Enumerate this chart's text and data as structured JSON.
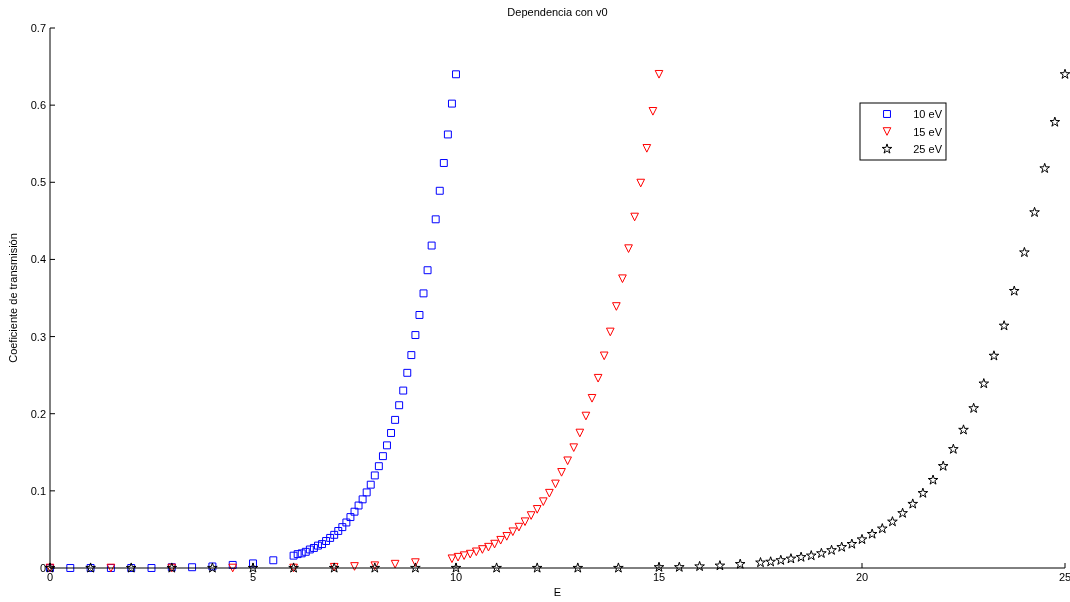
{
  "chart_data": {
    "type": "scatter",
    "title": "Dependencia con v0",
    "xlabel": "E",
    "ylabel": "Coeficiente de transmisión",
    "xlim": [
      0,
      25
    ],
    "xticks": [
      0,
      5,
      10,
      15,
      20,
      25
    ],
    "ylim": [
      0,
      0.7
    ],
    "yticks": [
      0,
      0.1,
      0.2,
      0.3,
      0.4,
      0.5,
      0.6,
      0.7
    ],
    "grid": false,
    "legend": "top right",
    "series": [
      {
        "name": "10 eV",
        "color": "#0000ff",
        "marker": "square",
        "x": [
          0,
          0.5,
          1,
          1.5,
          2,
          2.5,
          3,
          3.5,
          4,
          4.5,
          5,
          5.5,
          6,
          6.1,
          6.2,
          6.3,
          6.4,
          6.5,
          6.6,
          6.7,
          6.8,
          6.9,
          7,
          7.1,
          7.2,
          7.3,
          7.4,
          7.5,
          7.6,
          7.7,
          7.8,
          7.9,
          8,
          8.1,
          8.2,
          8.3,
          8.4,
          8.5,
          8.6,
          8.7,
          8.8,
          8.9,
          9,
          9.1,
          9.2,
          9.3,
          9.4,
          9.5,
          9.6,
          9.7,
          9.8,
          9.9,
          10
        ],
        "values": [
          0,
          0,
          0,
          0,
          0,
          0,
          0.001,
          0.001,
          0.002,
          0.004,
          0.006,
          0.01,
          0.016,
          0.018,
          0.019,
          0.021,
          0.024,
          0.026,
          0.029,
          0.031,
          0.035,
          0.039,
          0.043,
          0.048,
          0.053,
          0.059,
          0.066,
          0.073,
          0.081,
          0.089,
          0.098,
          0.108,
          0.12,
          0.132,
          0.145,
          0.159,
          0.175,
          0.192,
          0.211,
          0.23,
          0.253,
          0.276,
          0.302,
          0.328,
          0.356,
          0.386,
          0.418,
          0.452,
          0.489,
          0.525,
          0.562,
          0.602,
          0.64
        ]
      },
      {
        "name": "15 eV",
        "color": "#ff0000",
        "marker": "triangle",
        "x": [
          0,
          1.5,
          3,
          4.5,
          6,
          7,
          7.5,
          8,
          8.5,
          9,
          9.9,
          10.05,
          10.2,
          10.35,
          10.5,
          10.65,
          10.8,
          10.95,
          11.1,
          11.25,
          11.4,
          11.55,
          11.7,
          11.85,
          12,
          12.15,
          12.3,
          12.45,
          12.6,
          12.75,
          12.9,
          13.05,
          13.2,
          13.35,
          13.5,
          13.65,
          13.8,
          13.95,
          14.1,
          14.25,
          14.4,
          14.55,
          14.7,
          14.85,
          15
        ],
        "values": [
          0,
          0,
          0,
          0,
          0,
          0.001,
          0.002,
          0.003,
          0.005,
          0.007,
          0.012,
          0.014,
          0.016,
          0.018,
          0.021,
          0.024,
          0.027,
          0.031,
          0.036,
          0.041,
          0.047,
          0.053,
          0.06,
          0.068,
          0.076,
          0.086,
          0.097,
          0.109,
          0.124,
          0.139,
          0.156,
          0.175,
          0.197,
          0.22,
          0.246,
          0.275,
          0.306,
          0.339,
          0.375,
          0.414,
          0.455,
          0.499,
          0.544,
          0.592,
          0.64
        ]
      },
      {
        "name": "25 eV",
        "color": "#000000",
        "marker": "star",
        "x": [
          0,
          1,
          2,
          3,
          4,
          5,
          6,
          7,
          8,
          9,
          10,
          11,
          12,
          13,
          14,
          15,
          15.5,
          16,
          16.5,
          17,
          17.5,
          17.75,
          18,
          18.25,
          18.5,
          18.75,
          19,
          19.25,
          19.5,
          19.75,
          20,
          20.25,
          20.5,
          20.75,
          21,
          21.25,
          21.5,
          21.75,
          22,
          22.25,
          22.5,
          22.75,
          23,
          23.25,
          23.5,
          23.75,
          24,
          24.25,
          24.5,
          24.75,
          25
        ],
        "values": [
          0,
          0,
          0,
          0,
          0,
          0,
          0,
          0,
          0,
          0,
          0,
          0,
          0,
          0,
          0,
          0.001,
          0.001,
          0.002,
          0.003,
          0.005,
          0.007,
          0.008,
          0.01,
          0.012,
          0.014,
          0.016,
          0.019,
          0.023,
          0.027,
          0.031,
          0.037,
          0.044,
          0.051,
          0.06,
          0.071,
          0.083,
          0.097,
          0.114,
          0.132,
          0.154,
          0.179,
          0.207,
          0.239,
          0.275,
          0.314,
          0.359,
          0.409,
          0.461,
          0.518,
          0.578,
          0.64
        ]
      }
    ]
  }
}
